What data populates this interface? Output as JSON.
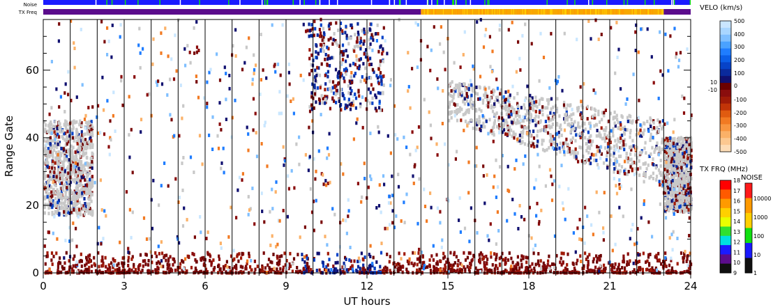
{
  "chart_data": {
    "type": "heatmap",
    "title": "",
    "xlabel": "UT hours",
    "ylabel": "Range Gate",
    "xlim": [
      0,
      24
    ],
    "ylim": [
      0,
      75
    ],
    "x_ticks": [
      0,
      3,
      6,
      9,
      12,
      15,
      18,
      21,
      24
    ],
    "x_tick_labels": [
      "0",
      "3",
      "6",
      "9",
      "12",
      "15",
      "18",
      "21",
      "24"
    ],
    "y_ticks": [
      0,
      20,
      40,
      60
    ],
    "y_tick_labels": [
      "0",
      "20",
      "40",
      "60"
    ],
    "grid": "vertical lines every 1 UT hour",
    "strips": {
      "noise_label": "Noise",
      "txfreq_label": "TX Freq",
      "txfreq_segments": [
        {
          "from": 0,
          "to": 14,
          "color": "#5b0c8c"
        },
        {
          "from": 14,
          "to": 23,
          "color": "#f7a800"
        },
        {
          "from": 23,
          "to": 24,
          "color": "#5b0c8c"
        }
      ],
      "noise_color": "#1a1aff"
    },
    "scatter_regions": [
      {
        "name": "ground scatter morning",
        "x": [
          0,
          1.8
        ],
        "gates": [
          17,
          45
        ],
        "class": "ground"
      },
      {
        "name": "ground scatter evening",
        "x": [
          15,
          23
        ],
        "gates": [
          25,
          57
        ],
        "class": "ground"
      },
      {
        "name": "late ground scatter",
        "x": [
          23,
          24
        ],
        "gates": [
          18,
          40
        ],
        "class": "ground"
      },
      {
        "name": "near-range echoes",
        "x": [
          0,
          24
        ],
        "gates": [
          0,
          6
        ],
        "class": "negative"
      }
    ],
    "velocity_colorbar": {
      "title": "VELO (km/s)",
      "ticks": [
        "500",
        "400",
        "300",
        "200",
        "100",
        "10",
        "0",
        "-10",
        "-100",
        "-200",
        "-300",
        "-400",
        "-500"
      ],
      "colors_top_to_bottom": [
        "#c9e6ff",
        "#a9d6ff",
        "#7fbfff",
        "#4aa2ff",
        "#1f7dff",
        "#0b5fe8",
        "#0743c8",
        "#0a2a9c",
        "#101070",
        "#6b0000",
        "#8a0d0d",
        "#a01b08",
        "#c23408",
        "#e05b10",
        "#f27a22",
        "#f99640",
        "#fbb168",
        "#fcc890",
        "#fddcb6"
      ]
    },
    "txfreq_colorbar": {
      "title": "TX FRQ (MHz)",
      "ticks": [
        "18",
        "17",
        "16",
        "15",
        "14",
        "13",
        "12",
        "11",
        "10",
        "9"
      ],
      "colors_top_to_bottom": [
        "#ff0000",
        "#ff5a00",
        "#ff9a00",
        "#ffd000",
        "#e8ff00",
        "#30e030",
        "#00e0e0",
        "#1a1aff",
        "#5b0c8c",
        "#101010"
      ]
    },
    "noise_colorbar": {
      "title": "NOISE",
      "ticks": [
        "10000",
        "1000",
        "100",
        "10",
        "1"
      ],
      "colors_top_to_bottom": [
        "#ff1a1a",
        "#ff9a00",
        "#ffd000",
        "#10e010",
        "#1a1aff",
        "#101010"
      ]
    }
  }
}
